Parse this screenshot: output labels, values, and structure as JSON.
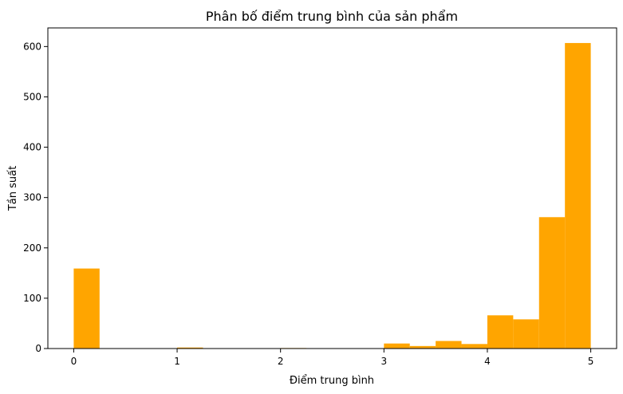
{
  "chart_data": {
    "type": "bar",
    "title": "Phân bố điểm trung bình của sản phẩm",
    "xlabel": "Điểm trung bình",
    "ylabel": "Tần suất",
    "bin_edges": [
      0,
      0.25,
      0.5,
      0.75,
      1.0,
      1.25,
      1.5,
      1.75,
      2.0,
      2.25,
      2.5,
      2.75,
      3.0,
      3.25,
      3.5,
      3.75,
      4.0,
      4.25,
      4.5,
      4.75,
      5.0
    ],
    "values": [
      159,
      0,
      0,
      0,
      2,
      0,
      0,
      0,
      1,
      0,
      0,
      0,
      10,
      5,
      15,
      9,
      66,
      58,
      261,
      607
    ],
    "xlim": [
      -0.25,
      5.25
    ],
    "ylim": [
      0,
      637
    ],
    "xticks": [
      0,
      1,
      2,
      3,
      4,
      5
    ],
    "yticks": [
      0,
      100,
      200,
      300,
      400,
      500,
      600
    ],
    "bar_color": "#ffa500",
    "grid": false
  }
}
